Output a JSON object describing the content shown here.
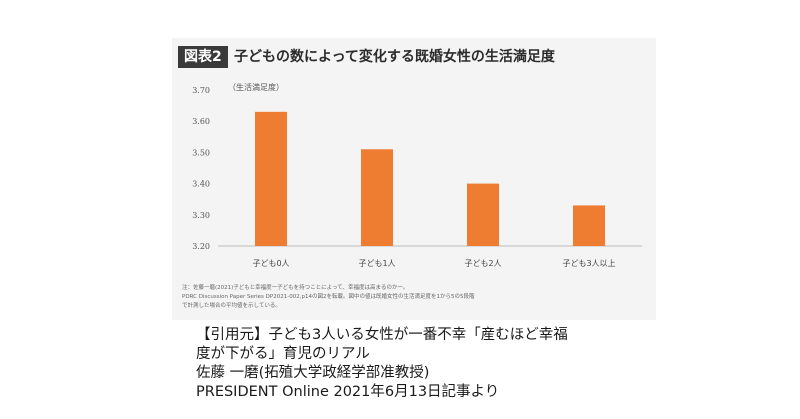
{
  "figure": {
    "label": "図表2",
    "title": "子どもの数によって変化する既婚女性の生活満足度"
  },
  "chart_data": {
    "type": "bar",
    "ylabel": "（生活満足度）",
    "categories": [
      "子ども0人",
      "子ども1人",
      "子ども2人",
      "子ども3人以上"
    ],
    "values": [
      3.63,
      3.51,
      3.4,
      3.33
    ],
    "ylim": [
      3.2,
      3.7
    ],
    "yticks": [
      "3.20",
      "3.30",
      "3.40",
      "3.50",
      "3.60",
      "3.70"
    ],
    "bar_color": "#ee7d31",
    "grid": false,
    "notes": [
      "注：佐藤一磨(2021)子どもと幸福度ー子どもを持つことによって、幸福度は高まるのかー。",
      "PDRC Discussion Paper Series DP2021-002,p14の図2を転載。図中の値は既婚女性の生活満足度を1から5の5段階",
      "で計測した場合の平均値を示している。"
    ]
  },
  "citation": {
    "lines": [
      "【引用元】子ども3人いる女性が一番不幸「産むほど幸福",
      "度が下がる」育児のリアル",
      "佐藤 一磨(拓殖大学政経学部准教授)",
      "PRESIDENT Online 2021年6月13日記事より"
    ]
  }
}
